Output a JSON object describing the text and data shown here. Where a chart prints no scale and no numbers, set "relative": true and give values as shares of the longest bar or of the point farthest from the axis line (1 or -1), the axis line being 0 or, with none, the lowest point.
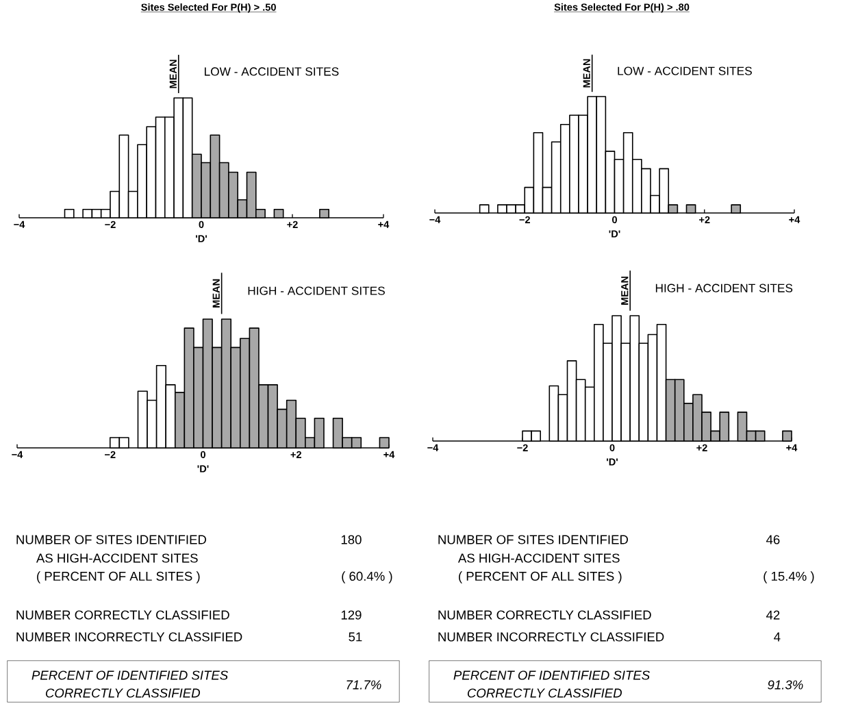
{
  "chart_data": [
    {
      "type": "bar",
      "title": "Sites Selected For P(H) > .50",
      "subtitle": "LOW - ACCIDENT SITES",
      "xlabel": "'D'",
      "relative": true,
      "x": [
        -2.9,
        -2.7,
        -2.5,
        -2.3,
        -2.1,
        -1.9,
        -1.7,
        -1.5,
        -1.3,
        -1.1,
        -0.9,
        -0.7,
        -0.5,
        -0.3,
        -0.1,
        0.1,
        0.3,
        0.5,
        0.7,
        0.9,
        1.1,
        1.3,
        1.5,
        1.7,
        1.9,
        2.1,
        2.3,
        2.5,
        2.7,
        2.9,
        3.1,
        3.3,
        3.5,
        3.7,
        3.9
      ],
      "values": [
        0.07,
        0,
        0.07,
        0.07,
        0.07,
        0.22,
        0.69,
        0.22,
        0.61,
        0.76,
        0.84,
        0.84,
        1,
        1,
        0.53,
        0.46,
        0.69,
        0.46,
        0.38,
        0.15,
        0.38,
        0.07,
        0,
        0.07,
        0,
        0,
        0,
        0,
        0.07,
        0,
        0,
        0,
        0,
        0,
        0
      ],
      "colors": [
        "#ffffff",
        "#ffffff",
        "#ffffff",
        "#ffffff",
        "#ffffff",
        "#ffffff",
        "#ffffff",
        "#ffffff",
        "#ffffff",
        "#ffffff",
        "#ffffff",
        "#ffffff",
        "#ffffff",
        "#ffffff",
        "#a8a8a8",
        "#a8a8a8",
        "#a8a8a8",
        "#a8a8a8",
        "#a8a8a8",
        "#a8a8a8",
        "#a8a8a8",
        "#a8a8a8",
        "#a8a8a8",
        "#a8a8a8",
        "#a8a8a8",
        "#a8a8a8",
        "#a8a8a8",
        "#a8a8a8",
        "#a8a8a8",
        "#a8a8a8",
        "#a8a8a8",
        "#a8a8a8",
        "#a8a8a8",
        "#a8a8a8",
        "#a8a8a8"
      ],
      "xlim": [
        -4,
        4
      ],
      "xticks": [
        {
          "value": -4,
          "label": "−4"
        },
        {
          "value": -2,
          "label": "−2"
        },
        {
          "value": 0,
          "label": "0"
        },
        {
          "value": 2,
          "label": "+2"
        },
        {
          "value": 4,
          "label": "+4"
        }
      ],
      "ref_lines": [
        {
          "axis": "x",
          "value": -0.5,
          "label": "MEAN"
        }
      ]
    },
    {
      "type": "bar",
      "title": "Sites Selected For P(H) > .80",
      "subtitle": "LOW - ACCIDENT SITES",
      "xlabel": "'D'",
      "relative": true,
      "x": [
        -2.9,
        -2.7,
        -2.5,
        -2.3,
        -2.1,
        -1.9,
        -1.7,
        -1.5,
        -1.3,
        -1.1,
        -0.9,
        -0.7,
        -0.5,
        -0.3,
        -0.1,
        0.1,
        0.3,
        0.5,
        0.7,
        0.9,
        1.1,
        1.3,
        1.5,
        1.7,
        1.9,
        2.1,
        2.3,
        2.5,
        2.7,
        2.9,
        3.1,
        3.3,
        3.5,
        3.7,
        3.9
      ],
      "values": [
        0.07,
        0,
        0.07,
        0.07,
        0.07,
        0.22,
        0.69,
        0.22,
        0.61,
        0.76,
        0.84,
        0.84,
        1,
        1,
        0.53,
        0.46,
        0.69,
        0.46,
        0.38,
        0.15,
        0.38,
        0.07,
        0,
        0.07,
        0,
        0,
        0,
        0,
        0.07,
        0,
        0,
        0,
        0,
        0,
        0
      ],
      "colors": [
        "#ffffff",
        "#ffffff",
        "#ffffff",
        "#ffffff",
        "#ffffff",
        "#ffffff",
        "#ffffff",
        "#ffffff",
        "#ffffff",
        "#ffffff",
        "#ffffff",
        "#ffffff",
        "#ffffff",
        "#ffffff",
        "#ffffff",
        "#ffffff",
        "#ffffff",
        "#ffffff",
        "#ffffff",
        "#ffffff",
        "#ffffff",
        "#a8a8a8",
        "#a8a8a8",
        "#a8a8a8",
        "#a8a8a8",
        "#a8a8a8",
        "#a8a8a8",
        "#a8a8a8",
        "#a8a8a8",
        "#a8a8a8",
        "#a8a8a8",
        "#a8a8a8",
        "#a8a8a8",
        "#a8a8a8",
        "#a8a8a8"
      ],
      "xlim": [
        -4,
        4
      ],
      "xticks": [
        {
          "value": -4,
          "label": "−4"
        },
        {
          "value": -2,
          "label": "−2"
        },
        {
          "value": 0,
          "label": "0"
        },
        {
          "value": 2,
          "label": "+2"
        },
        {
          "value": 4,
          "label": "+4"
        }
      ],
      "ref_lines": [
        {
          "axis": "x",
          "value": -0.5,
          "label": "MEAN"
        }
      ]
    },
    {
      "type": "bar",
      "subtitle": "HIGH - ACCIDENT SITES",
      "xlabel": "'D'",
      "relative": true,
      "x": [
        -2.9,
        -2.7,
        -2.5,
        -2.3,
        -2.1,
        -1.9,
        -1.7,
        -1.5,
        -1.3,
        -1.1,
        -0.9,
        -0.7,
        -0.5,
        -0.3,
        -0.1,
        0.1,
        0.3,
        0.5,
        0.7,
        0.9,
        1.1,
        1.3,
        1.5,
        1.7,
        1.9,
        2.1,
        2.3,
        2.5,
        2.7,
        2.9,
        3.1,
        3.3,
        3.5,
        3.7,
        3.9
      ],
      "values": [
        0,
        0,
        0,
        0,
        0,
        0.08,
        0.08,
        0,
        0.44,
        0.37,
        0.64,
        0.49,
        0.43,
        0.93,
        0.78,
        1,
        0.78,
        1,
        0.78,
        0.85,
        0.93,
        0.49,
        0.49,
        0.3,
        0.37,
        0.23,
        0.08,
        0.23,
        0,
        0.23,
        0.08,
        0.08,
        0,
        0,
        0.08
      ],
      "colors": [
        "#ffffff",
        "#ffffff",
        "#ffffff",
        "#ffffff",
        "#ffffff",
        "#ffffff",
        "#ffffff",
        "#ffffff",
        "#ffffff",
        "#ffffff",
        "#ffffff",
        "#ffffff",
        "#a8a8a8",
        "#a8a8a8",
        "#a8a8a8",
        "#a8a8a8",
        "#a8a8a8",
        "#a8a8a8",
        "#a8a8a8",
        "#a8a8a8",
        "#a8a8a8",
        "#a8a8a8",
        "#a8a8a8",
        "#a8a8a8",
        "#a8a8a8",
        "#a8a8a8",
        "#a8a8a8",
        "#a8a8a8",
        "#a8a8a8",
        "#a8a8a8",
        "#a8a8a8",
        "#a8a8a8",
        "#a8a8a8",
        "#a8a8a8",
        "#a8a8a8"
      ],
      "xlim": [
        -4,
        4
      ],
      "xticks": [
        {
          "value": -4,
          "label": "−4"
        },
        {
          "value": -2,
          "label": "−2"
        },
        {
          "value": 0,
          "label": "0"
        },
        {
          "value": 2,
          "label": "+2"
        },
        {
          "value": 4,
          "label": "+4"
        }
      ],
      "ref_lines": [
        {
          "axis": "x",
          "value": 0.4,
          "label": "MEAN"
        }
      ]
    },
    {
      "type": "bar",
      "subtitle": "HIGH - ACCIDENT SITES",
      "xlabel": "'D'",
      "relative": true,
      "x": [
        -2.9,
        -2.7,
        -2.5,
        -2.3,
        -2.1,
        -1.9,
        -1.7,
        -1.5,
        -1.3,
        -1.1,
        -0.9,
        -0.7,
        -0.5,
        -0.3,
        -0.1,
        0.1,
        0.3,
        0.5,
        0.7,
        0.9,
        1.1,
        1.3,
        1.5,
        1.7,
        1.9,
        2.1,
        2.3,
        2.5,
        2.7,
        2.9,
        3.1,
        3.3,
        3.5,
        3.7,
        3.9
      ],
      "values": [
        0,
        0,
        0,
        0,
        0,
        0.08,
        0.08,
        0,
        0.44,
        0.37,
        0.64,
        0.49,
        0.43,
        0.93,
        0.78,
        1,
        0.78,
        1,
        0.78,
        0.85,
        0.93,
        0.49,
        0.49,
        0.3,
        0.37,
        0.23,
        0.08,
        0.23,
        0,
        0.23,
        0.08,
        0.08,
        0,
        0,
        0.08
      ],
      "colors": [
        "#ffffff",
        "#ffffff",
        "#ffffff",
        "#ffffff",
        "#ffffff",
        "#ffffff",
        "#ffffff",
        "#ffffff",
        "#ffffff",
        "#ffffff",
        "#ffffff",
        "#ffffff",
        "#ffffff",
        "#ffffff",
        "#ffffff",
        "#ffffff",
        "#ffffff",
        "#ffffff",
        "#ffffff",
        "#ffffff",
        "#ffffff",
        "#a8a8a8",
        "#a8a8a8",
        "#a8a8a8",
        "#a8a8a8",
        "#a8a8a8",
        "#a8a8a8",
        "#a8a8a8",
        "#a8a8a8",
        "#a8a8a8",
        "#a8a8a8",
        "#a8a8a8",
        "#a8a8a8",
        "#a8a8a8",
        "#a8a8a8"
      ],
      "xlim": [
        -4,
        4
      ],
      "xticks": [
        {
          "value": -4,
          "label": "−4"
        },
        {
          "value": -2,
          "label": "−2"
        },
        {
          "value": 0,
          "label": "0"
        },
        {
          "value": 2,
          "label": "+2"
        },
        {
          "value": 4,
          "label": "+4"
        }
      ],
      "ref_lines": [
        {
          "axis": "x",
          "value": 0.4,
          "label": "MEAN"
        }
      ]
    },
    {
      "type": "other",
      "annotations": [
        "NUMBER OF SITES IDENTIFIED",
        "AS HIGH-ACCIDENT SITES",
        "( PERCENT OF ALL SITES )",
        "180",
        "( 60.4% )",
        "NUMBER CORRECTLY CLASSIFIED",
        "129",
        "NUMBER INCORRECTLY CLASSIFIED",
        "51",
        "PERCENT OF IDENTIFIED SITES",
        "CORRECTLY CLASSIFIED",
        "71.7%"
      ]
    },
    {
      "type": "other",
      "annotations": [
        "NUMBER OF SITES IDENTIFIED",
        "AS HIGH-ACCIDENT SITES",
        "( PERCENT OF ALL SITES )",
        "46",
        "( 15.4% )",
        "NUMBER CORRECTLY CLASSIFIED",
        "42",
        "NUMBER INCORRECTLY CLASSIFIED",
        "4",
        "PERCENT OF IDENTIFIED SITES",
        "CORRECTLY CLASSIFIED",
        "91.3%"
      ]
    }
  ]
}
